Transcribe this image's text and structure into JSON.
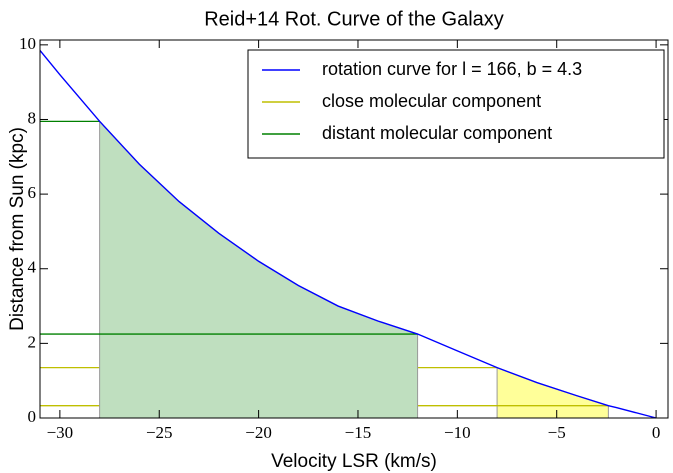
{
  "chart_data": {
    "type": "line",
    "title": "Reid+14 Rot. Curve of the Galaxy",
    "x_label": "Velocity LSR (km/s)",
    "y_label": "Distance from Sun (kpc)",
    "xlim": [
      -31,
      0.6
    ],
    "ylim": [
      0,
      10.13
    ],
    "xticks": [
      -30,
      -25,
      -20,
      -15,
      -10,
      -5,
      0
    ],
    "yticks": [
      0,
      2,
      4,
      6,
      8,
      10
    ],
    "legend": "upper right",
    "series": [
      {
        "name": "rotation curve for l = 166, b = 4.3",
        "color": "#0000ff",
        "x": [
          -31,
          -30,
          -28,
          -26,
          -24,
          -22,
          -20,
          -18,
          -16,
          -14,
          -12,
          -10,
          -8,
          -6,
          -4,
          -2.4,
          -2,
          0
        ],
        "values": [
          9.85,
          9.2,
          7.95,
          6.8,
          5.8,
          4.95,
          4.2,
          3.55,
          3.0,
          2.6,
          2.25,
          1.8,
          1.35,
          0.95,
          0.6,
          0.33,
          0.28,
          0
        ]
      },
      {
        "name": "close molecular component",
        "color": "#bfbf00",
        "fill": "#ffff99",
        "x": [
          -8,
          -2.4
        ],
        "values": [
          1.35,
          0.33
        ]
      },
      {
        "name": "distant molecular component",
        "color": "#008000",
        "fill": "#bfdfbf",
        "x": [
          -28,
          -12
        ],
        "values": [
          7.95,
          2.25
        ]
      }
    ]
  }
}
